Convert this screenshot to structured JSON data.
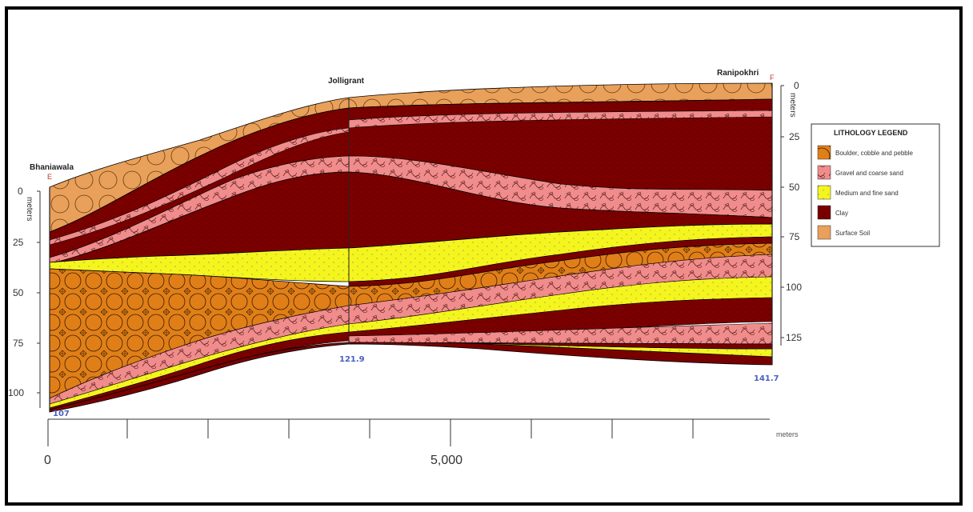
{
  "locations": [
    {
      "name": "Bhaniawala",
      "marker": "E",
      "elevation": "107"
    },
    {
      "name": "Jolligrant",
      "elevation": "121.9"
    },
    {
      "name": "Ranipokhri",
      "marker": "F",
      "elevation": "141.7"
    }
  ],
  "left_axis": {
    "label": "meters",
    "ticks": [
      "0",
      "25",
      "50",
      "75",
      "100"
    ]
  },
  "right_axis": {
    "label": "meters",
    "ticks": [
      "0",
      "25",
      "50",
      "75",
      "100",
      "125"
    ]
  },
  "x_axis": {
    "ticks": [
      "0",
      "5,000"
    ],
    "unit": "meters"
  },
  "legend": {
    "title": "LITHOLOGY LEGEND",
    "items": [
      {
        "label": "Boulder, cobble and pebble",
        "color": "#e07f18"
      },
      {
        "label": "Gravel and coarse sand",
        "color": "#f08c8c"
      },
      {
        "label": "Medium and fine  sand",
        "color": "#f5f51e"
      },
      {
        "label": "Clay",
        "color": "#7a0000"
      },
      {
        "label": "Surface  Soil",
        "color": "#e8a05a"
      }
    ]
  },
  "colors": {
    "boulder": "#e07f18",
    "gravel": "#f08c8c",
    "sand": "#f5f51e",
    "clay": "#7a0000",
    "soil": "#e8a05a"
  }
}
